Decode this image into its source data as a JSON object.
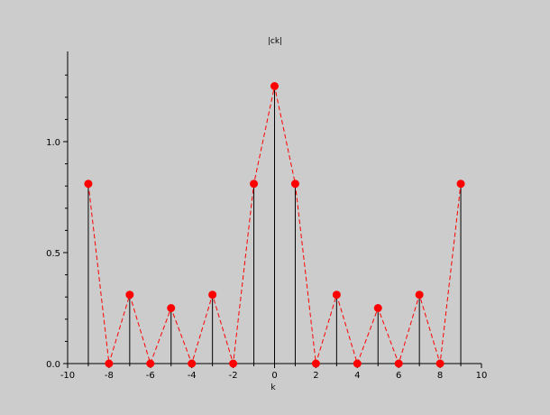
{
  "colors": {
    "background": "#cccccc",
    "axis": "#000000",
    "stem": "#000000",
    "marker": "#ff0000",
    "envelope": "#ff0000"
  },
  "chart_data": {
    "type": "scatter",
    "style": "stem plot with red circular markers and dashed red connecting line",
    "title": "|ck|",
    "xlabel": "k",
    "ylabel": "",
    "xlim": [
      -10,
      10
    ],
    "ylim": [
      0,
      1.4
    ],
    "x_ticks": [
      -10,
      -8,
      -6,
      -4,
      -2,
      0,
      2,
      4,
      6,
      8,
      10
    ],
    "x_tick_labels": [
      "-10",
      "-8",
      "-6",
      "-4",
      "-2",
      "0",
      "2",
      "4",
      "6",
      "8",
      "10"
    ],
    "y_ticks": [
      0,
      0.5,
      1.0
    ],
    "y_tick_labels": [
      "0.0",
      "0.5",
      "1.0"
    ],
    "grid": false,
    "series": [
      {
        "x": [
          -9,
          -8,
          -7,
          -6,
          -5,
          -4,
          -3,
          -2,
          -1,
          0,
          1,
          2,
          3,
          4,
          5,
          6,
          7,
          8,
          9
        ],
        "values": [
          0.81,
          0,
          0.31,
          0,
          0.25,
          0,
          0.31,
          0,
          0.81,
          1.25,
          0.81,
          0,
          0.31,
          0,
          0.25,
          0,
          0.31,
          0,
          0.81
        ]
      }
    ]
  }
}
